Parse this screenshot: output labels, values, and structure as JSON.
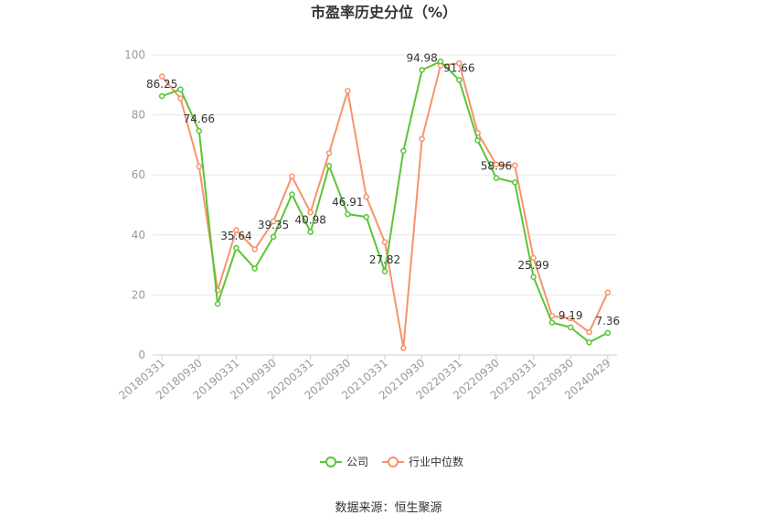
{
  "chart_data": {
    "type": "line",
    "title": "市盈率历史分位（%）",
    "source": "数据来源：恒生聚源",
    "ylim": [
      0,
      100
    ],
    "yticks": [
      0,
      20,
      40,
      60,
      80,
      100
    ],
    "grid": true,
    "legend_position": "bottom",
    "x_tick_labels": [
      "20180331",
      "20180930",
      "20190331",
      "20190930",
      "20200331",
      "20200930",
      "20210331",
      "20210930",
      "20220331",
      "20220930",
      "20230331",
      "20230930",
      "20240429"
    ],
    "x": [
      "20180331",
      "20180630",
      "20180930",
      "20181231",
      "20190331",
      "20190630",
      "20190930",
      "20191231",
      "20200331",
      "20200630",
      "20200930",
      "20201231",
      "20210331",
      "20210630",
      "20210930",
      "20211231",
      "20220331",
      "20220630",
      "20220930",
      "20221231",
      "20230331",
      "20230630",
      "20230930",
      "20231231",
      "20240429"
    ],
    "series": [
      {
        "name": "公司",
        "color": "#5cc437",
        "values": [
          86.25,
          88.5,
          74.66,
          17.0,
          35.64,
          28.8,
          39.35,
          53.5,
          40.98,
          63.0,
          46.91,
          46.0,
          27.82,
          68.0,
          94.98,
          97.8,
          91.66,
          71.5,
          58.96,
          57.5,
          25.99,
          10.8,
          9.19,
          4.2,
          7.36
        ]
      },
      {
        "name": "行业中位数",
        "color": "#f5936b",
        "values": [
          92.8,
          85.5,
          62.8,
          21.5,
          41.6,
          35.2,
          44.5,
          59.5,
          47.5,
          67.3,
          88.0,
          52.7,
          37.6,
          2.3,
          72.0,
          96.5,
          97.2,
          74.0,
          63.5,
          63.2,
          32.3,
          13.0,
          12.2,
          7.6,
          20.8
        ]
      }
    ],
    "data_labels": [
      {
        "index": 0,
        "text": "86.25"
      },
      {
        "index": 2,
        "text": "74.66"
      },
      {
        "index": 4,
        "text": "35.64"
      },
      {
        "index": 6,
        "text": "39.35"
      },
      {
        "index": 8,
        "text": "40.98"
      },
      {
        "index": 10,
        "text": "46.91"
      },
      {
        "index": 12,
        "text": "27.82"
      },
      {
        "index": 14,
        "text": "94.98"
      },
      {
        "index": 16,
        "text": "91.66"
      },
      {
        "index": 18,
        "text": "58.96"
      },
      {
        "index": 20,
        "text": "25.99"
      },
      {
        "index": 22,
        "text": "9.19"
      },
      {
        "index": 24,
        "text": "7.36"
      }
    ]
  }
}
